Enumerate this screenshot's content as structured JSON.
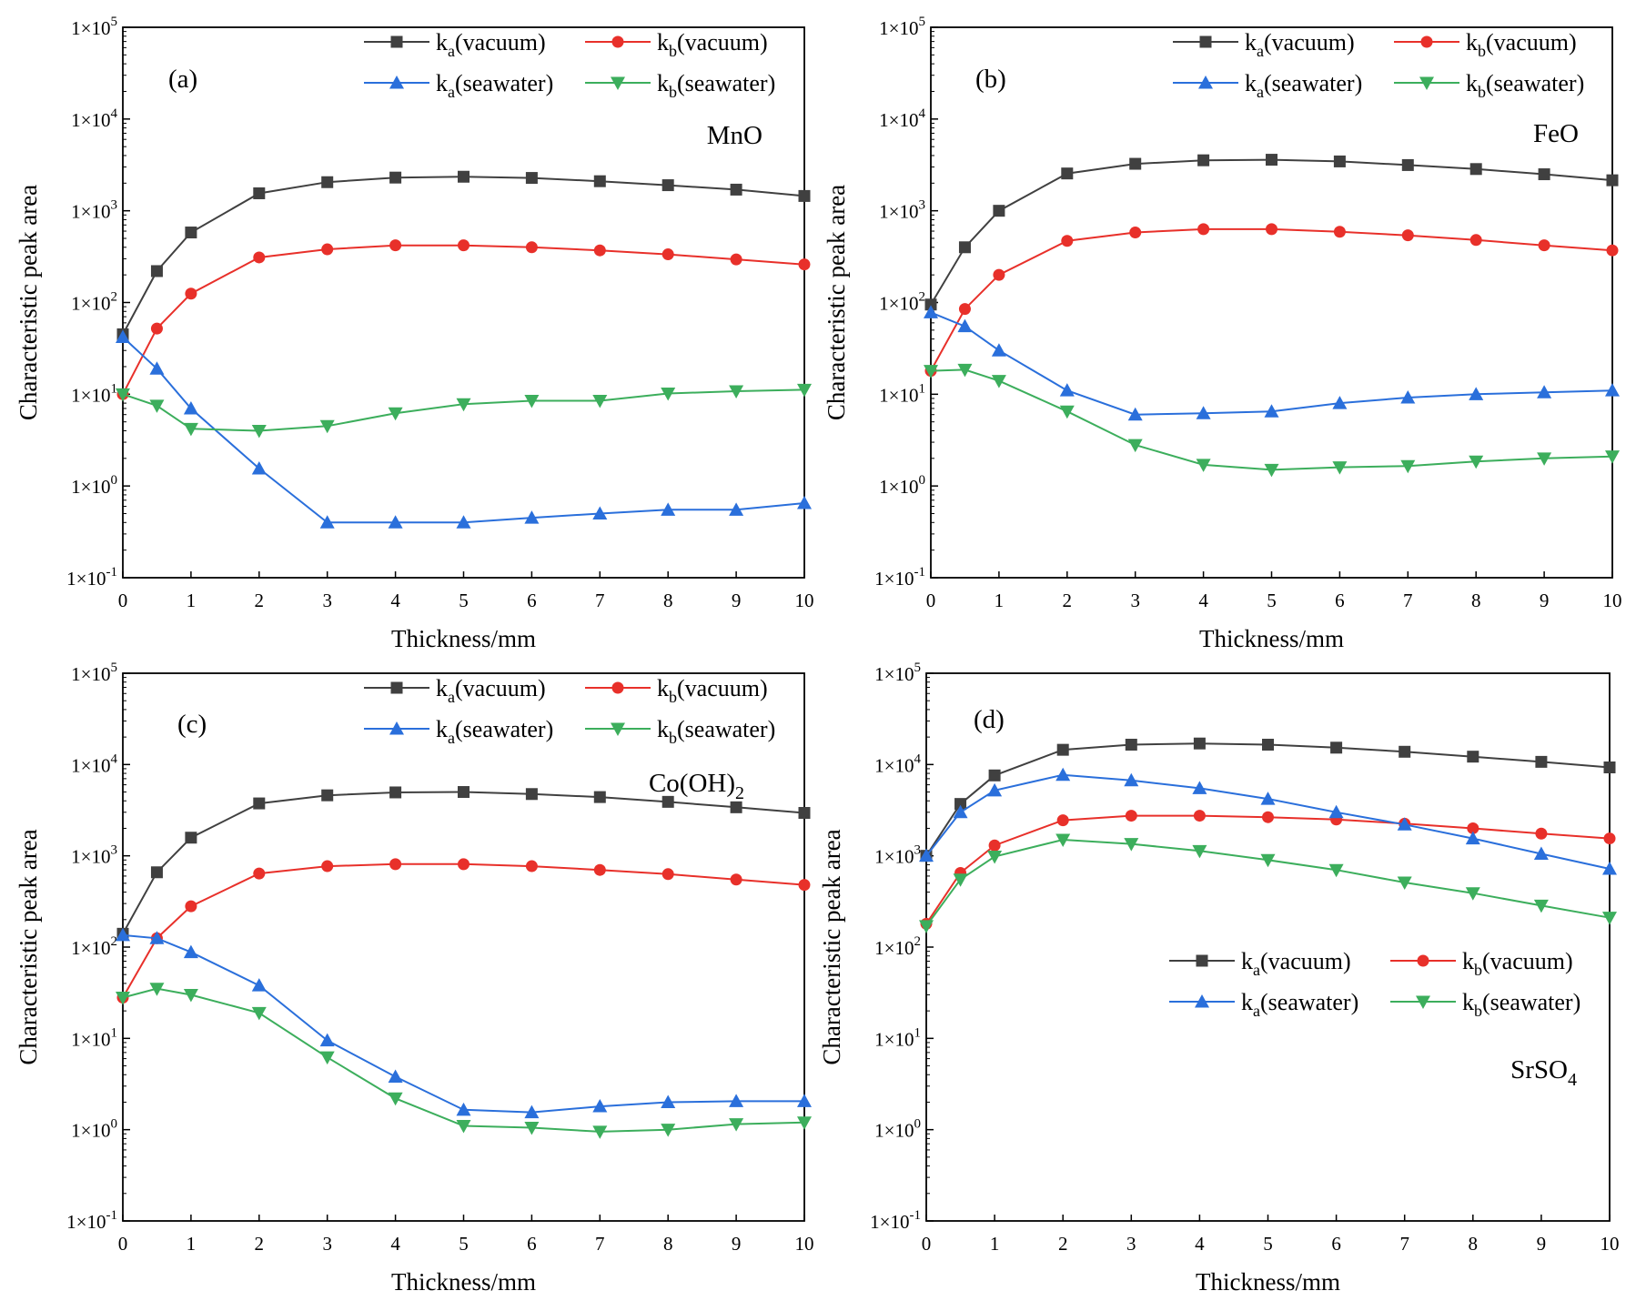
{
  "chart_data": [
    {
      "type": "line",
      "panel_label": "(a)",
      "material": "MnO",
      "material_sub": "",
      "xlabel": "Thickness/mm",
      "ylabel": "Characteristic peak area",
      "yscale": "log",
      "xlim": [
        0,
        10
      ],
      "ylim": [
        0.1,
        100000
      ],
      "xticks": [
        "0",
        "1",
        "2",
        "3",
        "4",
        "5",
        "6",
        "7",
        "8",
        "9",
        "10"
      ],
      "ytick_exponents": [
        "-1",
        "0",
        "1",
        "2",
        "3",
        "4",
        "5"
      ],
      "ytick_base": "1×10",
      "legend_position": "top-right",
      "x": [
        0,
        0.5,
        1,
        2,
        3,
        4,
        5,
        6,
        7,
        8,
        9,
        10
      ],
      "series": [
        {
          "name": "ka(vacuum)",
          "k_sub": "a",
          "medium": "(vacuum)",
          "color": "#404040",
          "marker": "square",
          "values": [
            45,
            220,
            580,
            1550,
            2050,
            2300,
            2350,
            2280,
            2100,
            1900,
            1700,
            1450
          ]
        },
        {
          "name": "kb(vacuum)",
          "k_sub": "b",
          "medium": "(vacuum)",
          "color": "#e8302a",
          "marker": "circle",
          "values": [
            10,
            52,
            125,
            310,
            380,
            420,
            420,
            400,
            370,
            335,
            295,
            260
          ]
        },
        {
          "name": "ka(seawater)",
          "k_sub": "a",
          "medium": "(seawater)",
          "color": "#2a6fdb",
          "marker": "triangle-up",
          "values": [
            42,
            19,
            7,
            1.55,
            0.4,
            0.4,
            0.4,
            0.45,
            0.5,
            0.55,
            0.55,
            0.65
          ]
        },
        {
          "name": "kb(seawater)",
          "k_sub": "b",
          "medium": "(seawater)",
          "color": "#3cae5c",
          "marker": "triangle-down",
          "values": [
            10,
            7.5,
            4.2,
            4,
            4.5,
            6.2,
            7.8,
            8.5,
            8.5,
            10.2,
            10.8,
            11.2
          ]
        }
      ]
    },
    {
      "type": "line",
      "panel_label": "(b)",
      "material": "FeO",
      "material_sub": "",
      "xlabel": "Thickness/mm",
      "ylabel": "Characteristic peak area",
      "yscale": "log",
      "xlim": [
        0,
        10
      ],
      "ylim": [
        0.1,
        100000
      ],
      "xticks": [
        "0",
        "1",
        "2",
        "3",
        "4",
        "5",
        "6",
        "7",
        "8",
        "9",
        "10"
      ],
      "ytick_exponents": [
        "-1",
        "0",
        "1",
        "2",
        "3",
        "4",
        "5"
      ],
      "ytick_base": "1×10",
      "legend_position": "top-right",
      "x": [
        0,
        0.5,
        1,
        2,
        3,
        4,
        5,
        6,
        7,
        8,
        9,
        10
      ],
      "series": [
        {
          "name": "ka(vacuum)",
          "k_sub": "a",
          "medium": "(vacuum)",
          "color": "#404040",
          "marker": "square",
          "values": [
            95,
            400,
            1000,
            2550,
            3250,
            3550,
            3600,
            3450,
            3150,
            2850,
            2500,
            2150
          ]
        },
        {
          "name": "kb(vacuum)",
          "k_sub": "b",
          "medium": "(vacuum)",
          "color": "#e8302a",
          "marker": "circle",
          "values": [
            18,
            85,
            200,
            470,
            580,
            630,
            630,
            590,
            540,
            480,
            420,
            370
          ]
        },
        {
          "name": "ka(seawater)",
          "k_sub": "a",
          "medium": "(seawater)",
          "color": "#2a6fdb",
          "marker": "triangle-up",
          "values": [
            78,
            55,
            30,
            11,
            6,
            6.2,
            6.5,
            8,
            9.2,
            10,
            10.5,
            11
          ]
        },
        {
          "name": "kb(seawater)",
          "k_sub": "b",
          "medium": "(seawater)",
          "color": "#3cae5c",
          "marker": "triangle-down",
          "values": [
            18,
            18.5,
            14,
            6.5,
            2.8,
            1.7,
            1.5,
            1.6,
            1.65,
            1.85,
            2,
            2.1
          ]
        }
      ]
    },
    {
      "type": "line",
      "panel_label": "(c)",
      "material": "Co(OH)",
      "material_sub": "2",
      "xlabel": "Thickness/mm",
      "ylabel": "Characteristic peak area",
      "yscale": "log",
      "xlim": [
        0,
        10
      ],
      "ylim": [
        0.1,
        100000
      ],
      "xticks": [
        "0",
        "1",
        "2",
        "3",
        "4",
        "5",
        "6",
        "7",
        "8",
        "9",
        "10"
      ],
      "ytick_exponents": [
        "-1",
        "0",
        "1",
        "2",
        "3",
        "4",
        "5"
      ],
      "ytick_base": "1×10",
      "legend_position": "top-right",
      "x": [
        0,
        0.5,
        1,
        2,
        3,
        4,
        5,
        6,
        7,
        8,
        9,
        10
      ],
      "series": [
        {
          "name": "ka(vacuum)",
          "k_sub": "a",
          "medium": "(vacuum)",
          "color": "#404040",
          "marker": "square",
          "values": [
            140,
            660,
            1580,
            3750,
            4600,
            4950,
            5000,
            4750,
            4400,
            3900,
            3400,
            2950
          ]
        },
        {
          "name": "kb(vacuum)",
          "k_sub": "b",
          "medium": "(vacuum)",
          "color": "#e8302a",
          "marker": "circle",
          "values": [
            28,
            125,
            280,
            640,
            770,
            810,
            810,
            770,
            700,
            630,
            550,
            480
          ]
        },
        {
          "name": "ka(seawater)",
          "k_sub": "a",
          "medium": "(seawater)",
          "color": "#2a6fdb",
          "marker": "triangle-up",
          "values": [
            135,
            125,
            88,
            38,
            9.5,
            3.8,
            1.65,
            1.55,
            1.8,
            2,
            2.05,
            2.05
          ]
        },
        {
          "name": "kb(seawater)",
          "k_sub": "b",
          "medium": "(seawater)",
          "color": "#3cae5c",
          "marker": "triangle-down",
          "values": [
            28,
            35,
            30,
            19,
            6.2,
            2.2,
            1.1,
            1.05,
            0.95,
            1,
            1.15,
            1.2
          ]
        }
      ]
    },
    {
      "type": "line",
      "panel_label": "(d)",
      "material": "SrSO",
      "material_sub": "4",
      "xlabel": "Thickness/mm",
      "ylabel": "Characteristic peak area",
      "yscale": "log",
      "xlim": [
        0,
        10
      ],
      "ylim": [
        0.1,
        100000
      ],
      "xticks": [
        "0",
        "1",
        "2",
        "3",
        "4",
        "5",
        "6",
        "7",
        "8",
        "9",
        "10"
      ],
      "ytick_exponents": [
        "-1",
        "0",
        "1",
        "2",
        "3",
        "4",
        "5"
      ],
      "ytick_base": "1×10",
      "legend_position": "center-right",
      "x": [
        0,
        0.5,
        1,
        2,
        3,
        4,
        5,
        6,
        7,
        8,
        9,
        10
      ],
      "series": [
        {
          "name": "ka(vacuum)",
          "k_sub": "a",
          "medium": "(vacuum)",
          "color": "#404040",
          "marker": "square",
          "values": [
            1000,
            3700,
            7600,
            14500,
            16500,
            17000,
            16500,
            15300,
            13800,
            12200,
            10700,
            9300
          ]
        },
        {
          "name": "kb(vacuum)",
          "k_sub": "b",
          "medium": "(vacuum)",
          "color": "#e8302a",
          "marker": "circle",
          "values": [
            180,
            650,
            1300,
            2450,
            2750,
            2750,
            2650,
            2500,
            2250,
            2000,
            1750,
            1550
          ]
        },
        {
          "name": "ka(seawater)",
          "k_sub": "a",
          "medium": "(seawater)",
          "color": "#2a6fdb",
          "marker": "triangle-up",
          "values": [
            1000,
            3000,
            5200,
            7700,
            6700,
            5500,
            4200,
            3000,
            2200,
            1550,
            1050,
            720
          ]
        },
        {
          "name": "kb(seawater)",
          "k_sub": "b",
          "medium": "(seawater)",
          "color": "#3cae5c",
          "marker": "triangle-down",
          "values": [
            170,
            550,
            980,
            1500,
            1350,
            1130,
            900,
            700,
            510,
            390,
            285,
            210
          ]
        }
      ]
    }
  ]
}
